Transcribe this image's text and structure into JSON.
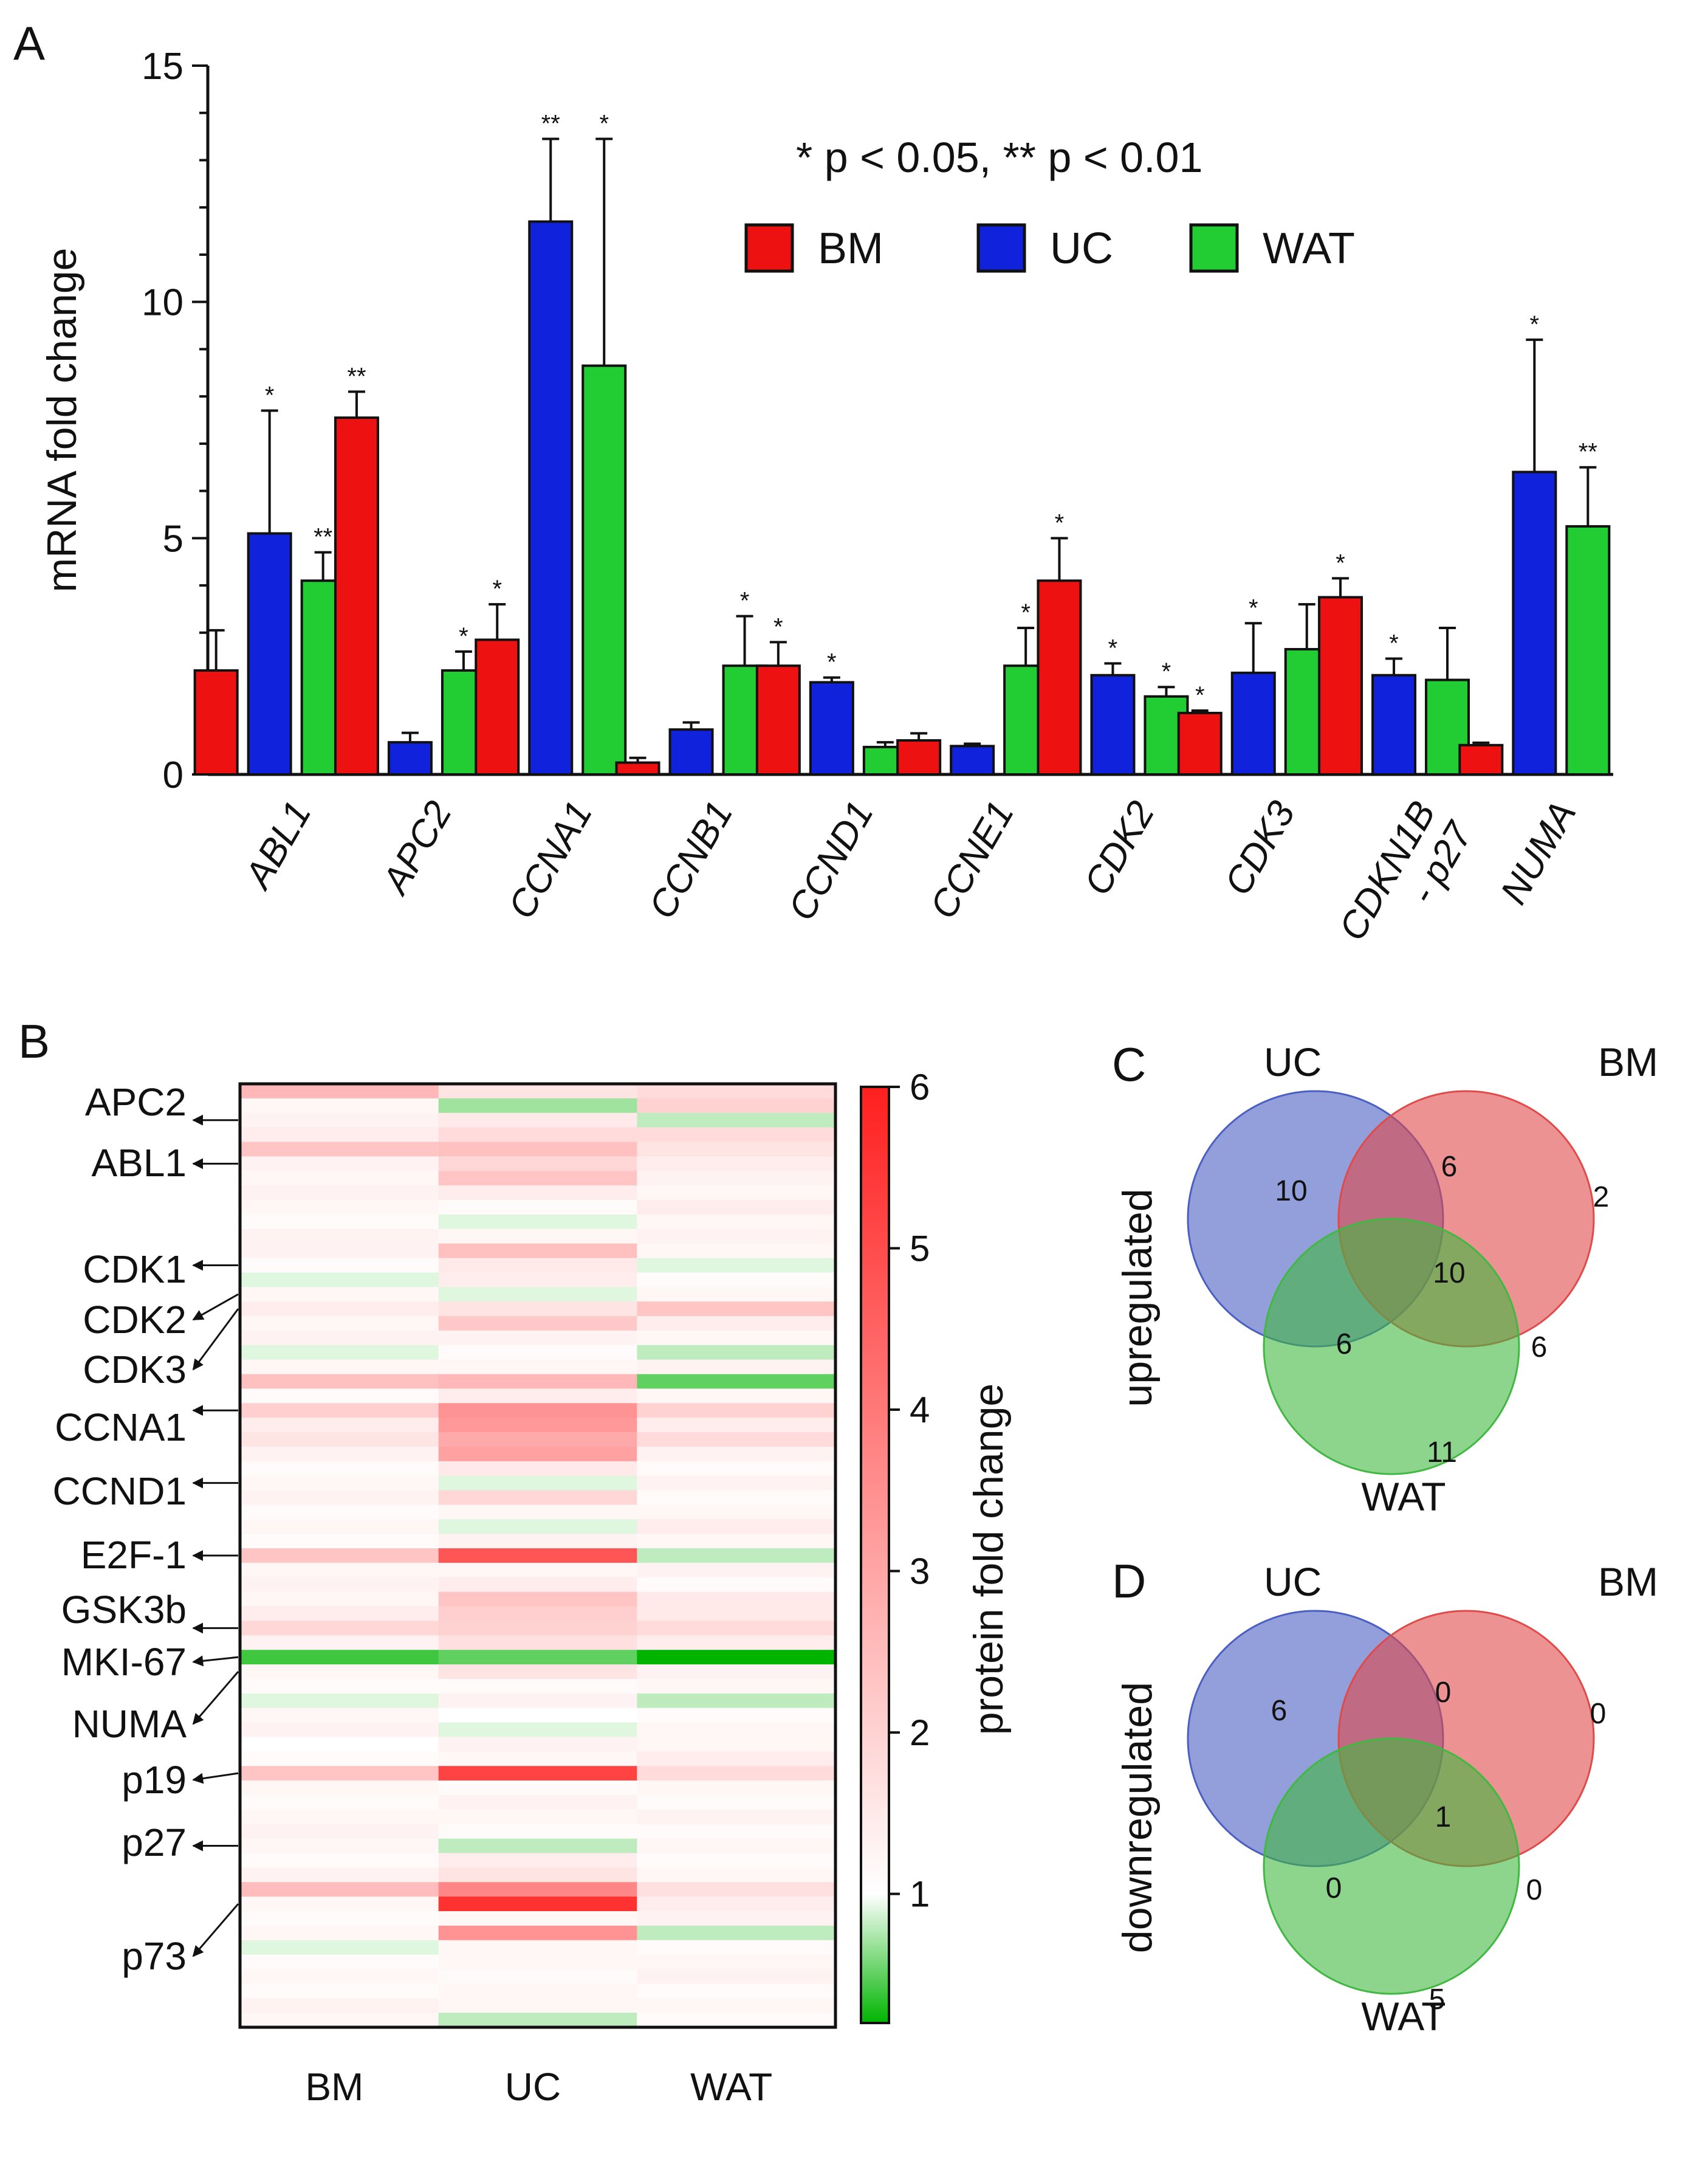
{
  "panels": {
    "A": "A",
    "B": "B",
    "C": "C",
    "D": "D"
  },
  "chart_data": [
    {
      "type": "bar",
      "panel": "A",
      "title": "",
      "ylabel": "mRNA fold change",
      "ylim": [
        0,
        15
      ],
      "yticks": [
        "0",
        "5",
        "10",
        "15"
      ],
      "annotation": "* p < 0.05, ** p < 0.01",
      "categories": [
        "ABL1",
        "APC2",
        "CCNA1",
        "CCNB1",
        "CCND1",
        "CCNE1",
        "CDK2",
        "CDK3",
        "CDKN1B - p27",
        "NUMA"
      ],
      "category_lines": [
        [
          "ABL1"
        ],
        [
          "APC2"
        ],
        [
          "CCNA1"
        ],
        [
          "CCNB1"
        ],
        [
          "CCND1"
        ],
        [
          "CCNE1"
        ],
        [
          "CDK2"
        ],
        [
          "CDK3"
        ],
        [
          "CDKN1B",
          "- p27"
        ],
        [
          "NUMA"
        ]
      ],
      "series": [
        {
          "name": "BM",
          "color": "#ee1111",
          "values": [
            2.2,
            7.55,
            2.85,
            0.25,
            2.3,
            0.72,
            4.1,
            1.3,
            3.75,
            0.62
          ],
          "errors": [
            0.85,
            0.55,
            0.75,
            0.1,
            0.5,
            0.15,
            0.9,
            0.05,
            0.4,
            0.05
          ],
          "sig": [
            "",
            "**",
            "*",
            "",
            "*",
            "",
            "*",
            "*",
            "*",
            ""
          ]
        },
        {
          "name": "UC",
          "color": "#1122dd",
          "values": [
            5.1,
            0.68,
            11.7,
            0.95,
            1.95,
            0.6,
            2.1,
            2.15,
            2.1,
            6.4
          ],
          "errors": [
            2.6,
            0.2,
            1.75,
            0.15,
            0.1,
            0.05,
            0.25,
            1.05,
            0.35,
            2.8
          ],
          "sig": [
            "*",
            "",
            "**",
            "",
            "*",
            "",
            "*",
            "*",
            "*",
            "*"
          ]
        },
        {
          "name": "WAT",
          "color": "#22cc33",
          "values": [
            4.1,
            2.2,
            8.65,
            2.3,
            0.58,
            2.3,
            1.65,
            2.65,
            2.0,
            5.25
          ],
          "errors": [
            0.6,
            0.4,
            4.8,
            1.05,
            0.1,
            0.8,
            0.2,
            0.95,
            1.1,
            1.25
          ],
          "sig": [
            "**",
            "*",
            "*",
            "*",
            "",
            "*",
            "*",
            "",
            "",
            "**"
          ]
        }
      ]
    },
    {
      "type": "heatmap",
      "panel": "B",
      "columns": [
        "BM",
        "UC",
        "WAT"
      ],
      "colorbar": {
        "title": "protein fold change",
        "min": 0.2,
        "max": 6,
        "ticks": [
          "1",
          "2",
          "3",
          "4",
          "5",
          "6"
        ]
      },
      "row_labels": [
        {
          "text": "APC2",
          "row": 2
        },
        {
          "text": "ABL1",
          "row": 5
        },
        {
          "text": "CDK1",
          "row": 12
        },
        {
          "text": "CDK2",
          "row": 14
        },
        {
          "text": "CDK3",
          "row": 15
        },
        {
          "text": "CCNA1",
          "row": 22
        },
        {
          "text": "CCND1",
          "row": 27
        },
        {
          "text": "E2F-1",
          "row": 32
        },
        {
          "text": "GSK3b",
          "row": 37
        },
        {
          "text": "MKI-67",
          "row": 39
        },
        {
          "text": "NUMA",
          "row": 40
        },
        {
          "text": "p19",
          "row": 47
        },
        {
          "text": "p27",
          "row": 52
        },
        {
          "text": "p73",
          "row": 56
        }
      ],
      "rows": [
        [
          2.6,
          1.6,
          1.8
        ],
        [
          1.2,
          0.7,
          2.0
        ],
        [
          1.3,
          1.5,
          0.8
        ],
        [
          1.4,
          1.8,
          1.8
        ],
        [
          2.3,
          2.4,
          1.6
        ],
        [
          1.3,
          1.9,
          1.4
        ],
        [
          1.2,
          2.3,
          1.3
        ],
        [
          1.3,
          1.4,
          1.2
        ],
        [
          1.2,
          1.1,
          1.4
        ],
        [
          1.1,
          0.9,
          1.2
        ],
        [
          1.3,
          1.2,
          1.3
        ],
        [
          1.3,
          2.4,
          1.2
        ],
        [
          1.1,
          1.5,
          0.9
        ],
        [
          0.9,
          1.4,
          1.1
        ],
        [
          1.2,
          0.9,
          1.2
        ],
        [
          1.4,
          1.6,
          2.3
        ],
        [
          1.2,
          2.2,
          1.4
        ],
        [
          1.3,
          1.3,
          1.2
        ],
        [
          0.9,
          1.1,
          0.8
        ],
        [
          1.2,
          1.2,
          1.3
        ],
        [
          2.4,
          2.6,
          0.5
        ],
        [
          1.1,
          1.4,
          1.2
        ],
        [
          2.1,
          3.4,
          2.0
        ],
        [
          1.4,
          3.3,
          1.4
        ],
        [
          1.6,
          2.9,
          1.8
        ],
        [
          1.3,
          3.1,
          1.3
        ],
        [
          1.1,
          1.5,
          1.1
        ],
        [
          1.2,
          0.9,
          1.3
        ],
        [
          1.3,
          1.9,
          1.1
        ],
        [
          1.1,
          1.2,
          1.2
        ],
        [
          1.2,
          0.9,
          1.4
        ],
        [
          1.1,
          1.3,
          1.2
        ],
        [
          2.3,
          4.8,
          0.8
        ],
        [
          1.2,
          1.2,
          1.3
        ],
        [
          1.3,
          1.4,
          1.1
        ],
        [
          1.2,
          2.3,
          1.5
        ],
        [
          1.4,
          2.1,
          1.5
        ],
        [
          1.9,
          2.0,
          1.8
        ],
        [
          1.3,
          1.7,
          1.4
        ],
        [
          0.4,
          0.5,
          0.15
        ],
        [
          1.2,
          1.6,
          1.3
        ],
        [
          1.1,
          1.1,
          1.2
        ],
        [
          0.9,
          1.3,
          0.8
        ],
        [
          1.2,
          1.0,
          1.1
        ],
        [
          1.3,
          0.9,
          1.2
        ],
        [
          1.0,
          1.3,
          1.2
        ],
        [
          1.1,
          1.2,
          1.4
        ],
        [
          2.3,
          5.2,
          1.8
        ],
        [
          1.2,
          1.1,
          1.2
        ],
        [
          1.1,
          1.3,
          1.1
        ],
        [
          1.2,
          1.2,
          1.3
        ],
        [
          1.3,
          1.1,
          1.1
        ],
        [
          1.2,
          0.8,
          1.2
        ],
        [
          1.1,
          1.4,
          1.1
        ],
        [
          1.3,
          1.6,
          1.2
        ],
        [
          2.5,
          3.7,
          1.7
        ],
        [
          1.2,
          5.6,
          1.4
        ],
        [
          1.1,
          1.2,
          1.3
        ],
        [
          1.2,
          3.4,
          0.8
        ],
        [
          0.9,
          1.2,
          1.1
        ],
        [
          1.1,
          1.2,
          1.2
        ],
        [
          1.2,
          1.1,
          1.3
        ],
        [
          1.1,
          1.2,
          1.1
        ],
        [
          1.3,
          1.2,
          1.2
        ],
        [
          1.2,
          0.8,
          1.1
        ]
      ]
    },
    {
      "type": "venn",
      "panel": "C",
      "side_label": "upregulated",
      "sets": [
        "UC",
        "BM",
        "WAT"
      ],
      "colors": {
        "UC": "#4a5fc1",
        "BM": "#df4a4a",
        "WAT": "#41b841"
      },
      "regions": {
        "UC_only": 10,
        "UC_BM": 6,
        "BM_only": 2,
        "all": 10,
        "UC_WAT": 6,
        "BM_WAT": 6,
        "WAT_only": 11
      }
    },
    {
      "type": "venn",
      "panel": "D",
      "side_label": "downregulated",
      "sets": [
        "UC",
        "BM",
        "WAT"
      ],
      "colors": {
        "UC": "#4a5fc1",
        "BM": "#df4a4a",
        "WAT": "#41b841"
      },
      "regions": {
        "UC_only": 6,
        "UC_BM": 0,
        "BM_only": 0,
        "all": 1,
        "UC_WAT": 0,
        "BM_WAT": 0,
        "WAT_only": 5
      }
    }
  ]
}
